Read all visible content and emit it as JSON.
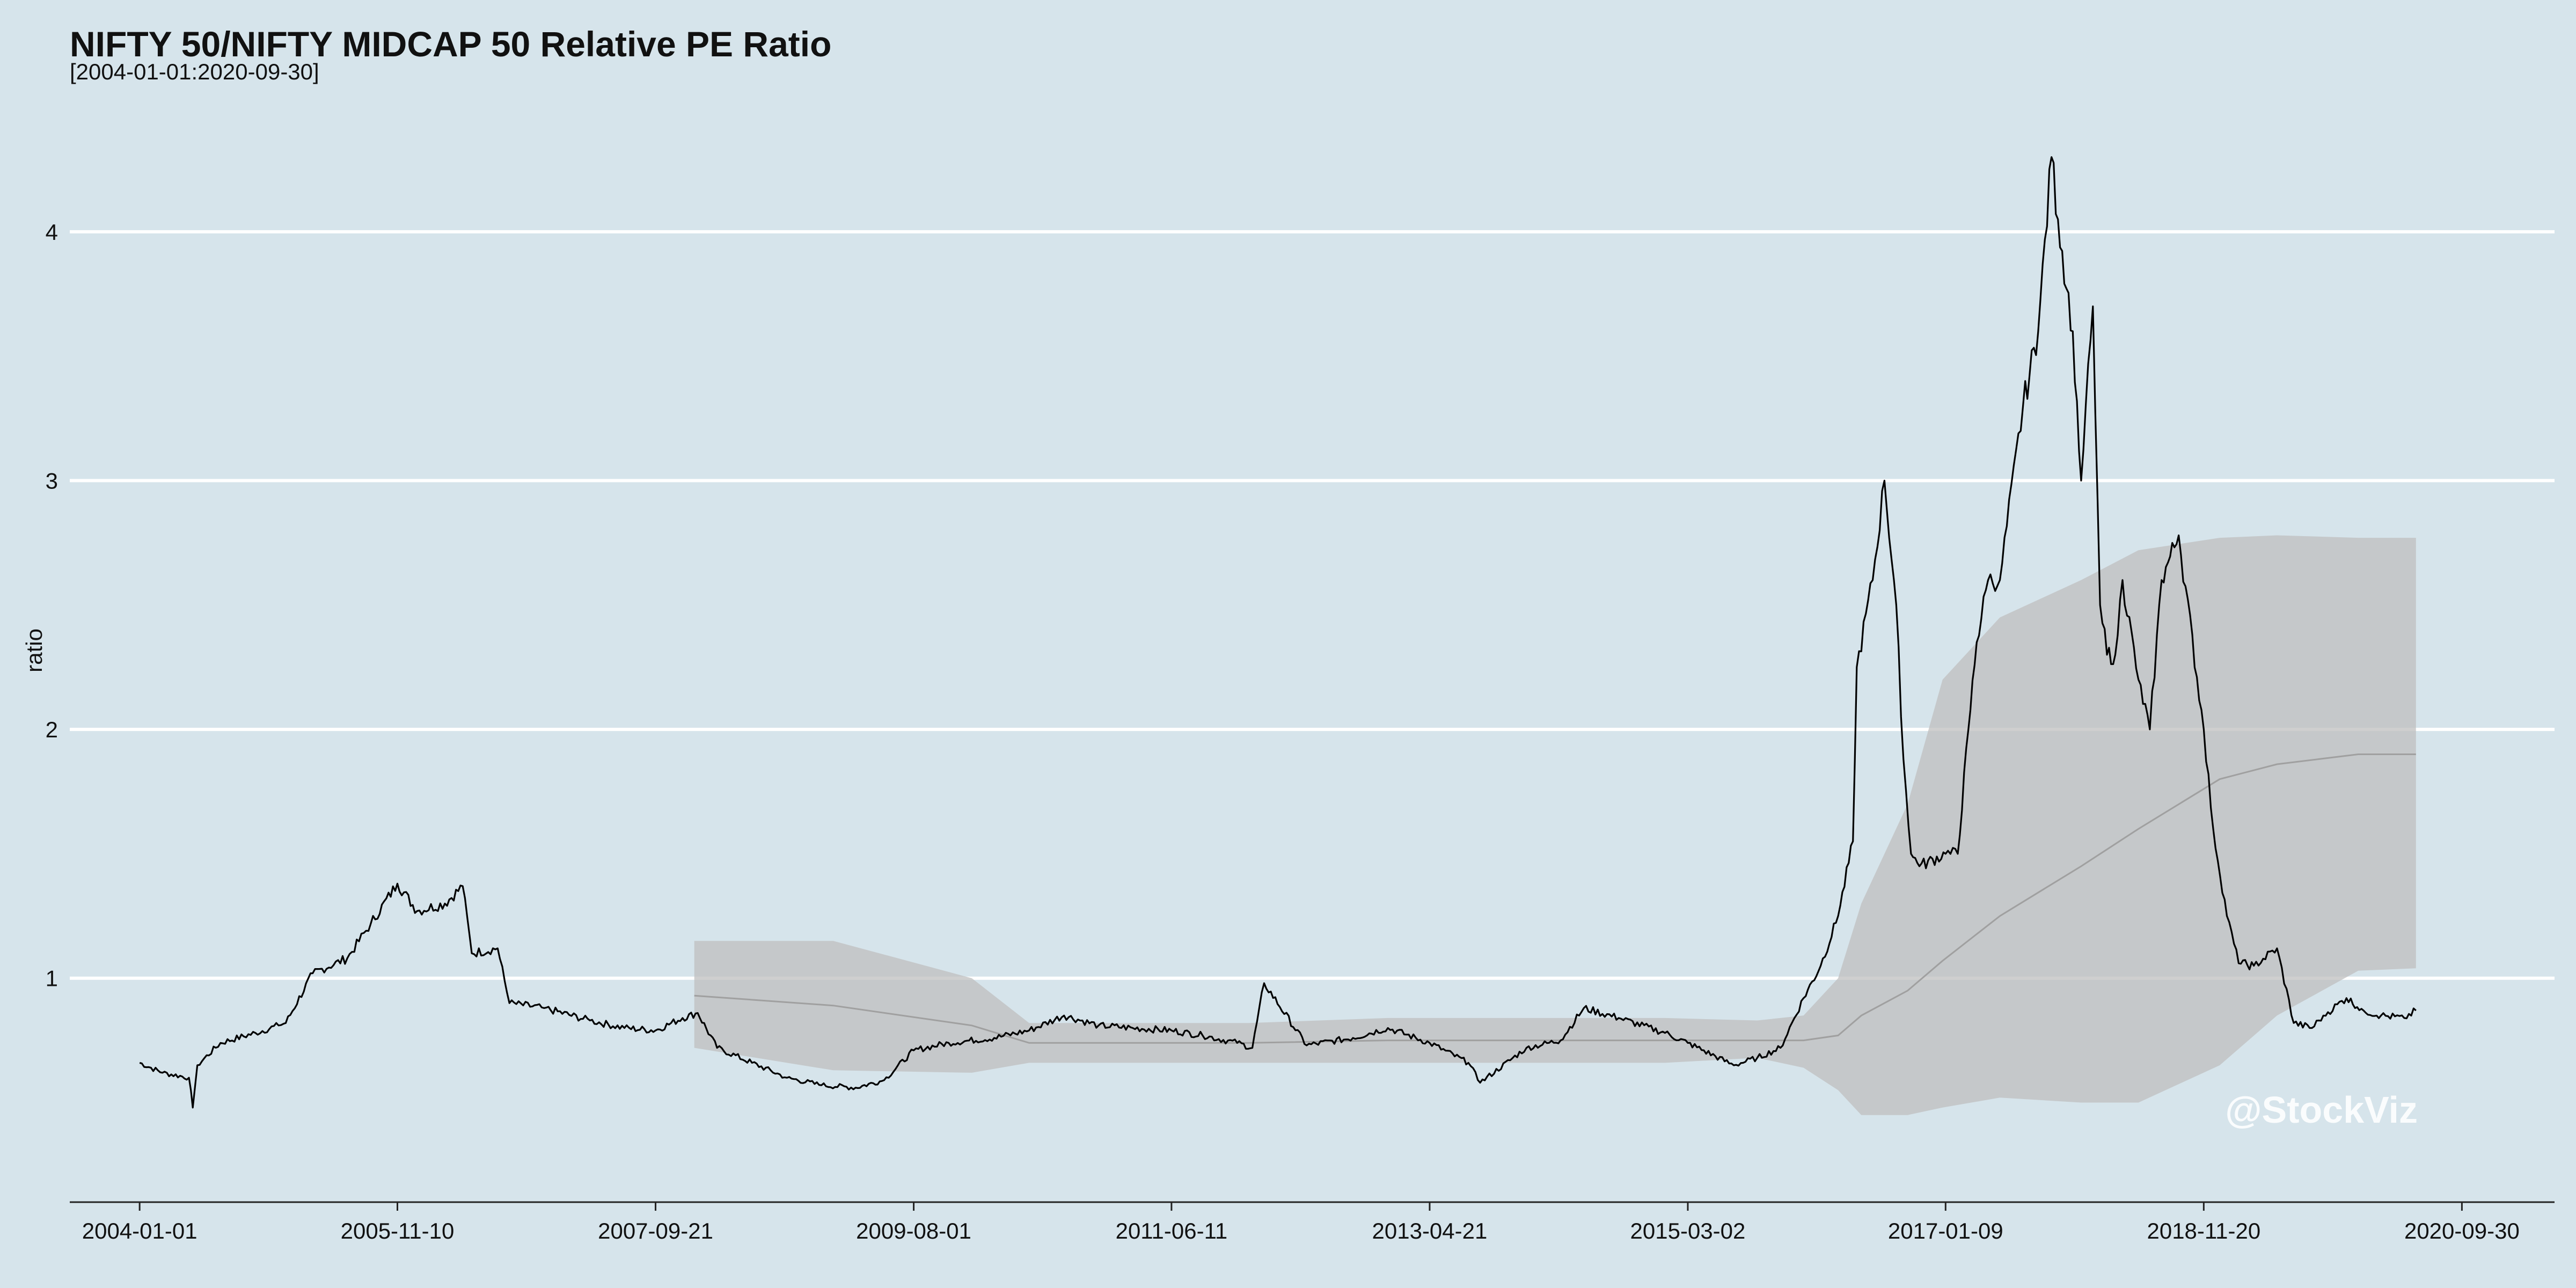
{
  "chart_data": {
    "type": "line",
    "title": "NIFTY 50/NIFTY MIDCAP 50 Relative PE Ratio",
    "subtitle": "[2004-01-01:2020-09-30]",
    "xlabel": "",
    "ylabel": "ratio",
    "x_ticks": [
      "2004-01-01",
      "2005-11-10",
      "2007-09-21",
      "2009-08-01",
      "2011-06-11",
      "2013-04-21",
      "2015-03-02",
      "2017-01-09",
      "2018-11-20",
      "2020-09-30"
    ],
    "y_ticks": [
      1,
      2,
      3,
      4
    ],
    "ylim": [
      0.1,
      4.5
    ],
    "xlim": [
      "2003-07-01",
      "2021-06-01"
    ],
    "grid": "horizontal major only",
    "colors": {
      "background": "#d6e4eb",
      "grid": "#ffffff",
      "line": "#000000",
      "band": "#bfbfbf",
      "mean": "#a0a0a0"
    },
    "series": [
      {
        "name": "",
        "x": [
          "2004-01-01",
          "2004-03-01",
          "2004-05-10",
          "2004-05-20",
          "2004-06-01",
          "2004-08-01",
          "2004-11-01",
          "2005-01-01",
          "2005-01-20",
          "2005-04-01",
          "2005-07-01",
          "2005-09-01",
          "2005-11-10",
          "2006-01-01",
          "2006-03-15",
          "2006-05-01",
          "2006-05-25",
          "2006-08-01",
          "2006-09-01",
          "2006-12-01",
          "2007-04-01",
          "2007-07-01",
          "2007-09-21",
          "2007-12-01",
          "2008-01-10",
          "2008-03-01",
          "2008-06-01",
          "2008-09-01",
          "2008-12-01",
          "2009-03-01",
          "2009-05-15",
          "2009-08-01",
          "2009-11-01",
          "2010-03-01",
          "2010-06-01",
          "2010-09-01",
          "2010-12-01",
          "2011-03-01",
          "2011-06-11",
          "2011-09-01",
          "2011-12-01",
          "2012-01-10",
          "2012-02-10",
          "2012-06-01",
          "2012-10-01",
          "2013-01-01",
          "2013-04-21",
          "2013-08-01",
          "2013-09-01",
          "2014-01-01",
          "2014-04-01",
          "2014-06-01",
          "2014-09-01",
          "2015-01-01",
          "2015-03-02",
          "2015-07-01",
          "2015-09-01",
          "2015-11-01",
          "2016-01-01",
          "2016-02-15",
          "2016-04-01",
          "2016-05-10",
          "2016-05-20",
          "2016-07-01",
          "2016-08-01",
          "2016-09-01",
          "2016-09-20",
          "2016-10-10",
          "2016-11-01",
          "2017-01-09",
          "2017-02-10",
          "2017-03-10",
          "2017-04-01",
          "2017-05-01",
          "2017-06-01",
          "2017-08-01",
          "2017-09-10",
          "2017-10-15",
          "2017-11-01",
          "2017-12-10",
          "2018-01-01",
          "2018-02-01",
          "2018-02-20",
          "2018-03-10",
          "2018-04-01",
          "2018-04-20",
          "2018-06-01",
          "2018-07-01",
          "2018-08-01",
          "2018-09-15",
          "2018-11-20",
          "2018-12-15",
          "2019-01-20",
          "2019-02-20",
          "2019-04-01",
          "2019-06-01",
          "2019-07-15",
          "2019-09-01",
          "2019-10-01",
          "2019-12-01",
          "2020-01-15",
          "2020-03-01",
          "2020-05-01",
          "2020-06-01"
        ],
        "values": [
          0.66,
          0.62,
          0.6,
          0.48,
          0.65,
          0.74,
          0.78,
          0.81,
          0.82,
          1.02,
          1.08,
          1.22,
          1.38,
          1.27,
          1.3,
          1.37,
          1.1,
          1.12,
          0.9,
          0.88,
          0.83,
          0.8,
          0.79,
          0.84,
          0.86,
          0.72,
          0.66,
          0.6,
          0.57,
          0.56,
          0.59,
          0.71,
          0.74,
          0.76,
          0.79,
          0.85,
          0.81,
          0.8,
          0.79,
          0.77,
          0.74,
          0.72,
          0.98,
          0.73,
          0.76,
          0.8,
          0.74,
          0.66,
          0.58,
          0.72,
          0.75,
          0.88,
          0.84,
          0.78,
          0.74,
          0.65,
          0.68,
          0.72,
          0.92,
          1.05,
          1.25,
          1.55,
          2.25,
          2.6,
          3.0,
          2.5,
          1.88,
          1.5,
          1.45,
          1.5,
          1.5,
          2.0,
          2.35,
          2.6,
          2.6,
          3.3,
          3.6,
          4.3,
          4.05,
          3.6,
          3.0,
          3.7,
          2.5,
          2.3,
          2.3,
          2.6,
          2.2,
          2.0,
          2.6,
          2.78,
          2.0,
          1.6,
          1.25,
          1.06,
          1.05,
          1.12,
          0.82,
          0.8,
          0.85,
          0.92,
          0.87,
          0.85,
          0.84,
          0.87
        ]
      }
    ],
    "band": {
      "x": [
        "2008-01-01",
        "2009-01-01",
        "2010-01-01",
        "2010-06-01",
        "2011-01-01",
        "2012-01-01",
        "2013-01-01",
        "2014-01-01",
        "2015-01-01",
        "2015-09-01",
        "2016-01-01",
        "2016-04-01",
        "2016-06-01",
        "2016-10-01",
        "2017-01-01",
        "2017-06-01",
        "2018-01-01",
        "2018-06-01",
        "2019-01-01",
        "2019-06-01",
        "2020-01-01",
        "2020-06-01"
      ],
      "upper": [
        1.15,
        1.15,
        1.0,
        0.82,
        0.82,
        0.82,
        0.84,
        0.84,
        0.84,
        0.83,
        0.85,
        1.0,
        1.3,
        1.7,
        2.2,
        2.45,
        2.6,
        2.72,
        2.77,
        2.78,
        2.77,
        2.77
      ],
      "lower": [
        0.72,
        0.63,
        0.62,
        0.66,
        0.66,
        0.66,
        0.66,
        0.66,
        0.66,
        0.68,
        0.64,
        0.55,
        0.45,
        0.45,
        0.48,
        0.52,
        0.5,
        0.5,
        0.65,
        0.85,
        1.03,
        1.04
      ],
      "mean": [
        0.93,
        0.89,
        0.81,
        0.74,
        0.74,
        0.74,
        0.75,
        0.75,
        0.75,
        0.75,
        0.75,
        0.77,
        0.85,
        0.95,
        1.07,
        1.25,
        1.45,
        1.6,
        1.8,
        1.86,
        1.9,
        1.9
      ]
    },
    "annotations": [
      "@StockViz"
    ]
  }
}
